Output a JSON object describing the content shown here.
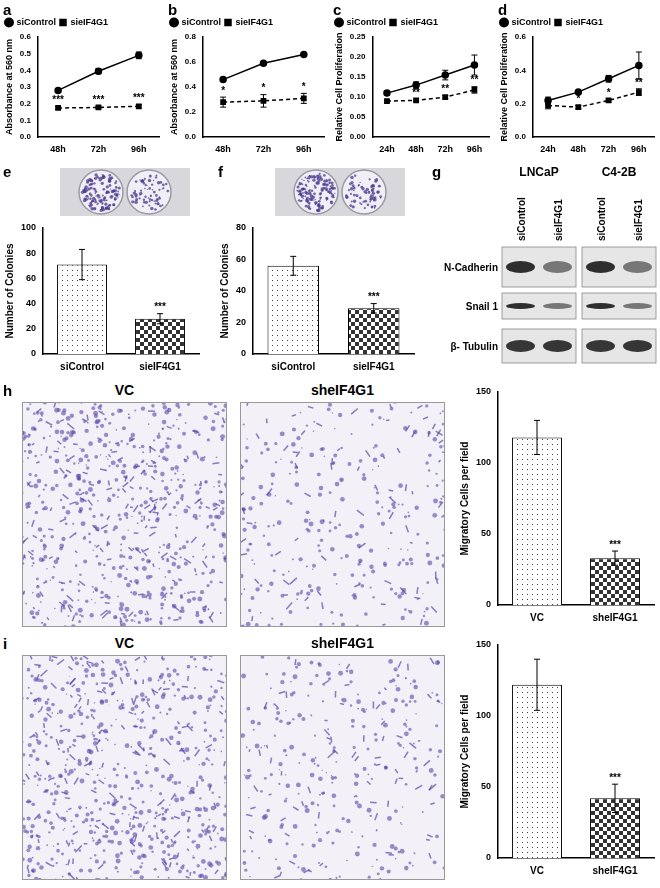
{
  "chart_data": [
    {
      "panel": "a",
      "type": "line",
      "ylabel": "Absorbance at 560 nm",
      "categories": [
        "48h",
        "72h",
        "96h"
      ],
      "ylim": [
        0,
        0.6
      ],
      "yticks": [
        {
          "value": 0,
          "label": "0.0"
        },
        0.1,
        0.2,
        0.3,
        0.4,
        0.5,
        0.6
      ],
      "legend": "upper left",
      "grid": false,
      "series": [
        {
          "name": "siControl",
          "color": "#000000",
          "marker": "circle",
          "line_style": "solid",
          "values": [
            0.28,
            0.395,
            0.49
          ],
          "errors": [
            0.005,
            0.015,
            0.02
          ]
        },
        {
          "name": "sieIF4G1",
          "color": "#000000",
          "marker": "square",
          "line_style": "dashed",
          "values": [
            0.175,
            0.178,
            0.185
          ],
          "errors": [
            0.008,
            0.008,
            0.01
          ],
          "annotations": [
            "***",
            "***",
            "***"
          ]
        }
      ]
    },
    {
      "panel": "b",
      "type": "line",
      "ylabel": "Absorbance at 560 nm",
      "categories": [
        "48h",
        "72h",
        "96h"
      ],
      "ylim": [
        0,
        0.8
      ],
      "yticks": [
        {
          "value": 0,
          "label": "0.0"
        },
        0.2,
        0.4,
        0.6,
        0.8
      ],
      "legend": "upper left",
      "grid": false,
      "series": [
        {
          "name": "siControl",
          "color": "#000000",
          "marker": "circle",
          "line_style": "solid",
          "values": [
            0.46,
            0.59,
            0.66
          ],
          "errors": [
            0.005,
            0.005,
            0.005
          ]
        },
        {
          "name": "sieIF4G1",
          "color": "#000000",
          "marker": "square",
          "line_style": "dashed",
          "values": [
            0.28,
            0.29,
            0.31
          ],
          "errors": [
            0.04,
            0.05,
            0.04
          ],
          "annotations": [
            "*",
            "*",
            "*"
          ]
        }
      ]
    },
    {
      "panel": "c",
      "type": "line",
      "ylabel": "Relative Cell Proliferation",
      "categories": [
        "24h",
        "48h",
        "72h",
        "96h"
      ],
      "ylim": [
        0,
        0.25
      ],
      "yticks": [
        {
          "value": 0,
          "label": "0.00"
        },
        0.05,
        {
          "value": 0.1,
          "label": "0.10"
        },
        0.15,
        {
          "value": 0.2,
          "label": "0.20"
        },
        0.25
      ],
      "legend": "upper left",
      "grid": false,
      "series": [
        {
          "name": "siControl",
          "color": "#000000",
          "marker": "circle",
          "line_style": "solid",
          "values": [
            0.11,
            0.13,
            0.155,
            0.18
          ],
          "errors": [
            0.005,
            0.008,
            0.012,
            0.025
          ]
        },
        {
          "name": "sieIF4G1",
          "color": "#000000",
          "marker": "square",
          "line_style": "dashed",
          "values": [
            0.09,
            0.092,
            0.1,
            0.118
          ],
          "errors": [
            0.003,
            0.003,
            0.004,
            0.008
          ],
          "annotations": [
            null,
            "**",
            "**",
            "**"
          ]
        }
      ]
    },
    {
      "panel": "d",
      "type": "line",
      "ylabel": "Relative Cell Proliferation",
      "categories": [
        "24h",
        "48h",
        "72h",
        "96h"
      ],
      "ylim": [
        0,
        0.6
      ],
      "yticks": [
        {
          "value": 0,
          "label": "0.0"
        },
        0.2,
        0.4,
        0.6
      ],
      "legend": "upper left",
      "grid": false,
      "series": [
        {
          "name": "siControl",
          "color": "#000000",
          "marker": "circle",
          "line_style": "solid",
          "values": [
            0.22,
            0.27,
            0.35,
            0.43
          ],
          "errors": [
            0.02,
            0.01,
            0.02,
            0.08
          ]
        },
        {
          "name": "sieIF4G1",
          "color": "#000000",
          "marker": "square",
          "line_style": "dashed",
          "values": [
            0.19,
            0.18,
            0.22,
            0.27
          ],
          "errors": [
            0.02,
            0.01,
            0.01,
            0.02
          ],
          "annotations": [
            null,
            "*",
            "*",
            "**"
          ]
        }
      ]
    },
    {
      "panel": "e",
      "type": "bar",
      "ylabel": "Number of Colonies",
      "categories": [
        "siControl",
        "sieIF4G1"
      ],
      "values": [
        71,
        28
      ],
      "errors": [
        12,
        4
      ],
      "annotations": [
        null,
        "***"
      ],
      "color": "#000000",
      "ylim": [
        0,
        100
      ],
      "yticks": [
        0,
        20,
        40,
        60,
        80,
        100
      ],
      "grid": false
    },
    {
      "panel": "f",
      "type": "bar",
      "ylabel": "Number of Colonies",
      "categories": [
        "siControl",
        "sieIF4G1"
      ],
      "values": [
        56,
        29
      ],
      "errors": [
        6,
        3
      ],
      "annotations": [
        null,
        "***"
      ],
      "color": "#000000",
      "ylim": [
        0,
        80
      ],
      "yticks": [
        0,
        20,
        40,
        60,
        80
      ],
      "grid": false
    },
    {
      "panel": "h",
      "type": "bar",
      "ylabel": "Migratory Cells per field",
      "categories": [
        "VC",
        "sheIF4G1"
      ],
      "image_labels": [
        "VC",
        "sheIF4G1"
      ],
      "values": [
        118,
        33
      ],
      "errors": [
        12,
        5
      ],
      "annotations": [
        null,
        "***"
      ],
      "color": "#000000",
      "ylim": [
        0,
        150
      ],
      "yticks": [
        0,
        50,
        100,
        150
      ],
      "grid": false
    },
    {
      "panel": "i",
      "type": "bar",
      "ylabel": "Migratory Cells per field",
      "categories": [
        "VC",
        "sheIF4G1"
      ],
      "image_labels": [
        "VC",
        "sheIF4G1"
      ],
      "values": [
        122,
        42
      ],
      "errors": [
        18,
        10
      ],
      "annotations": [
        null,
        "***"
      ],
      "color": "#000000",
      "ylim": [
        0,
        150
      ],
      "yticks": [
        0,
        50,
        100,
        150
      ],
      "grid": false
    }
  ],
  "blot": {
    "panel": "g",
    "cell_lines": [
      "LNCaP",
      "C4-2B"
    ],
    "lanes": [
      "siControl",
      "sieIF4G1"
    ],
    "proteins": [
      "N-Cadherin",
      "Snail 1",
      "β- Tubulin"
    ]
  }
}
